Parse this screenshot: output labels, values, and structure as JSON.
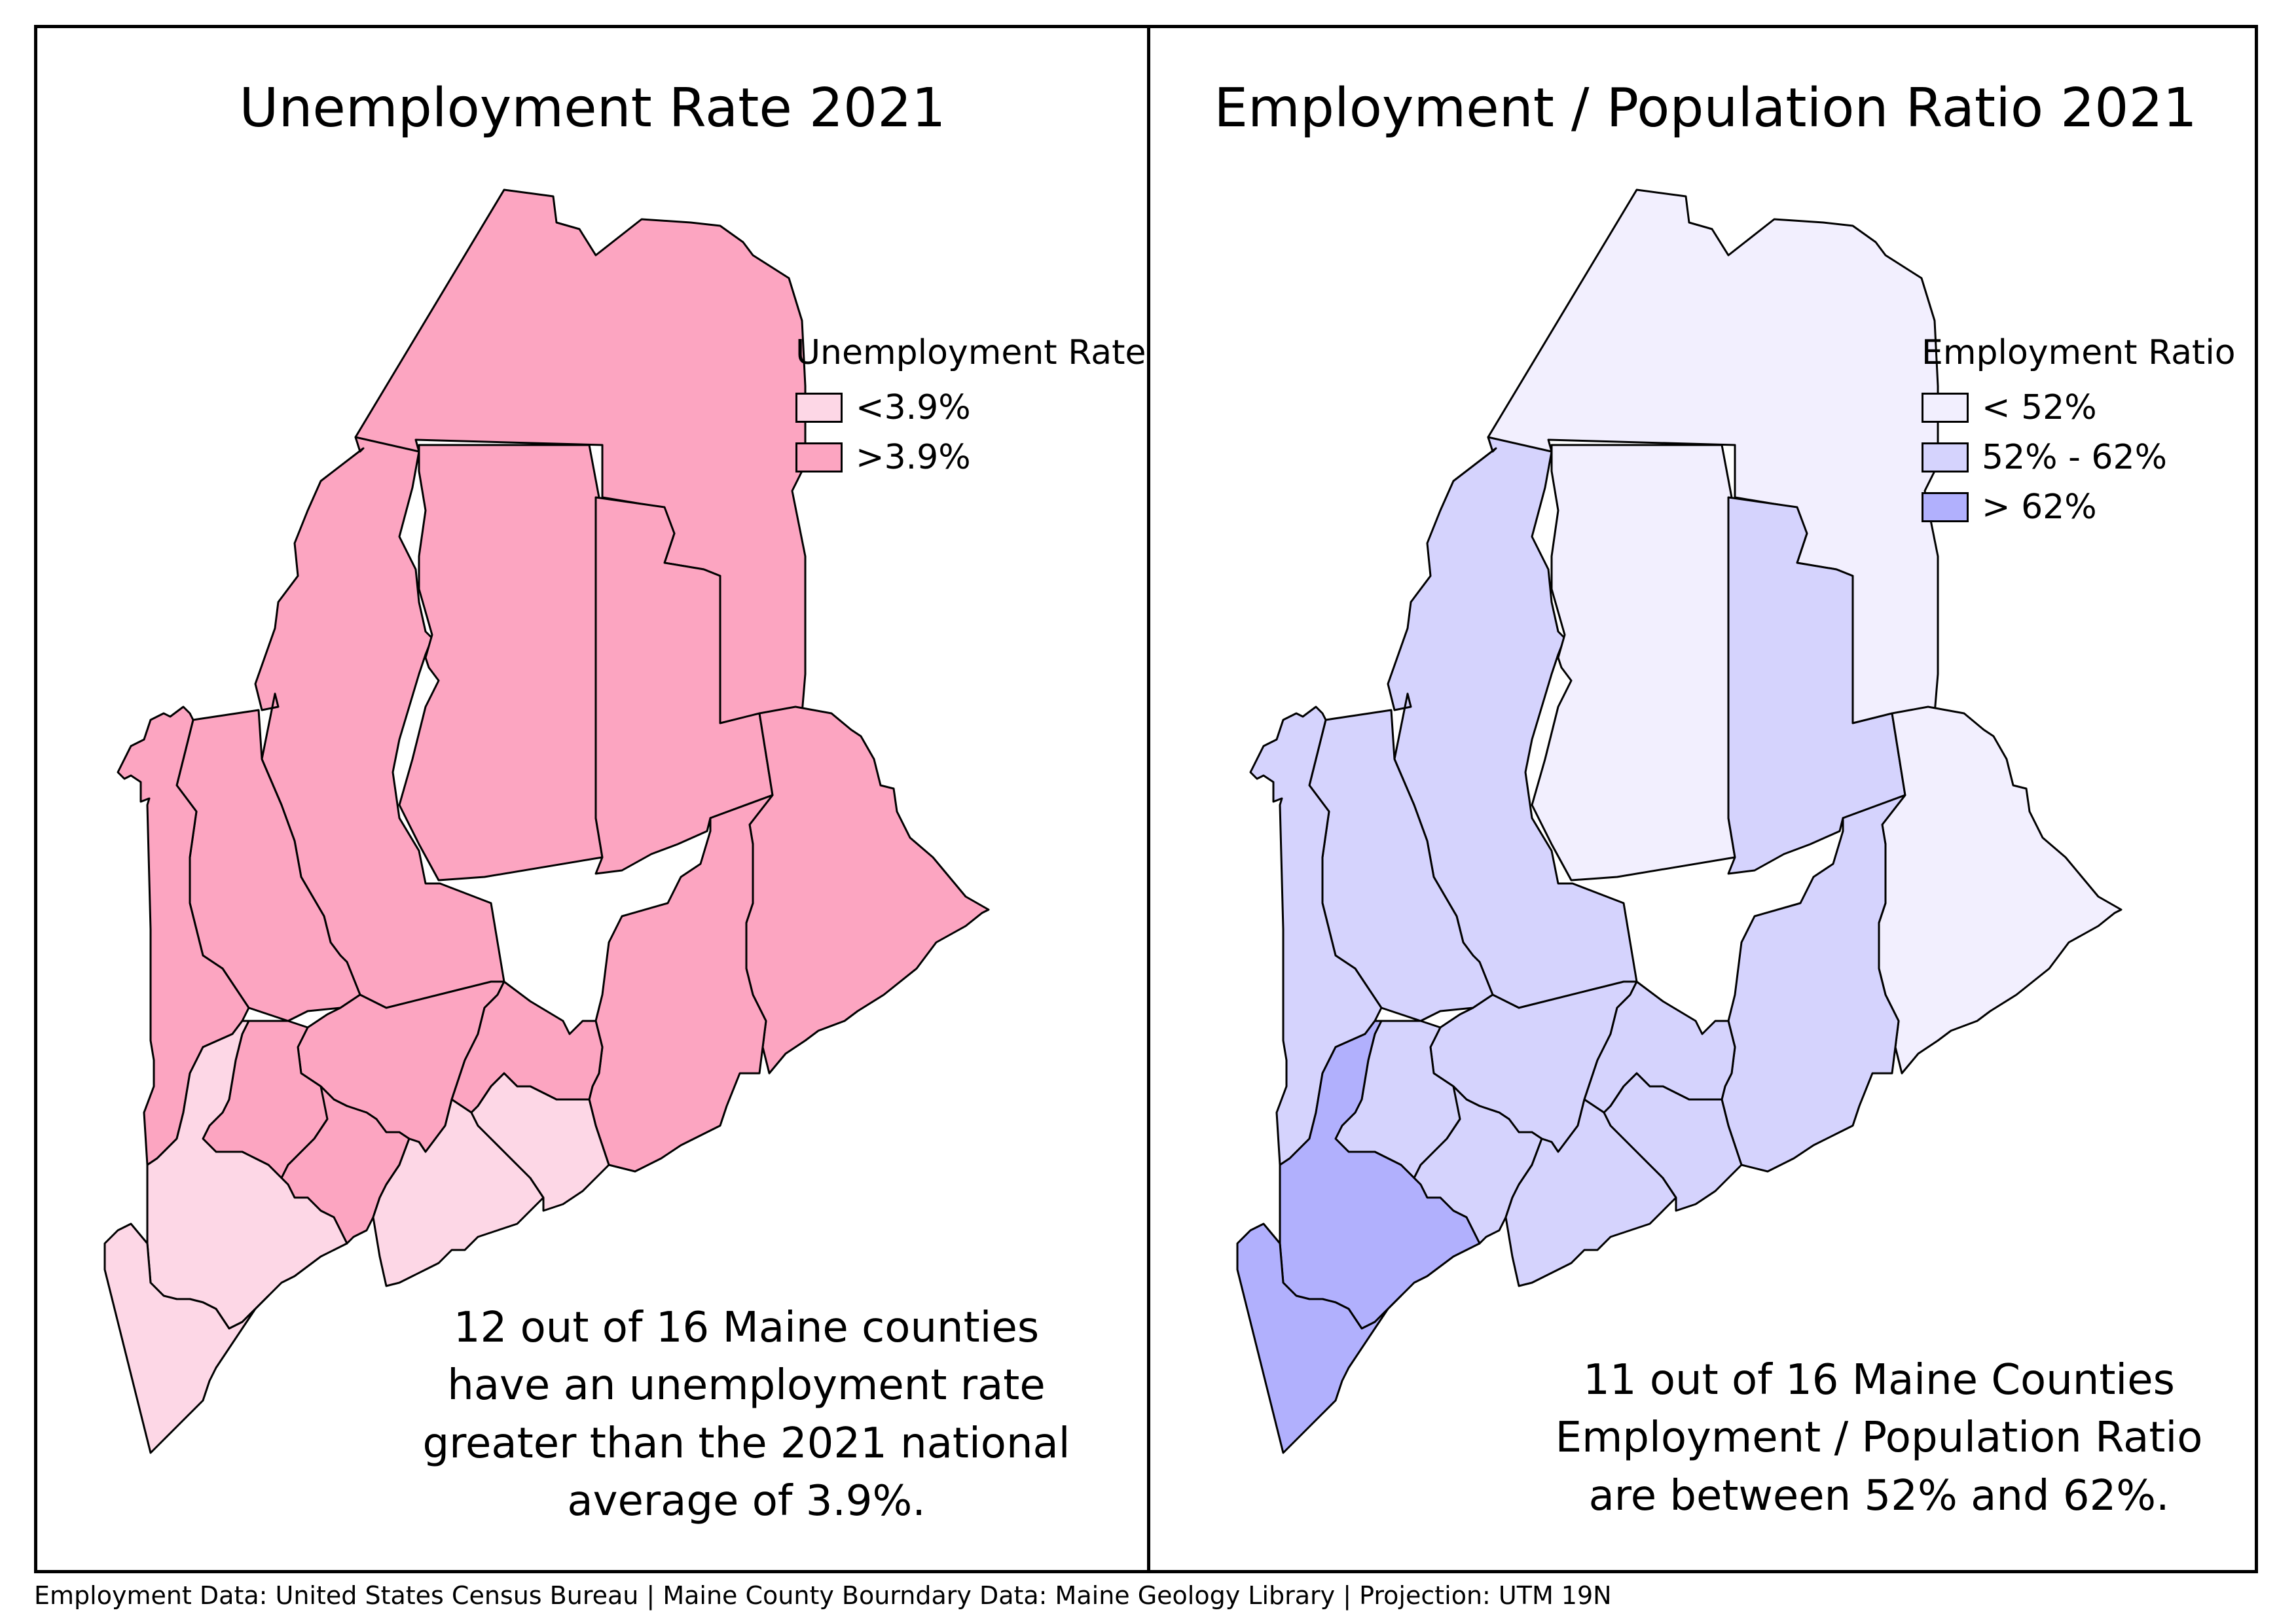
{
  "left_panel": {
    "title": "Unemployment Rate 2021",
    "legend": {
      "title": "Unemployment Rate",
      "items": [
        {
          "label": "<3.9%",
          "color": "#fdd7e6"
        },
        {
          "label": ">3.9%",
          "color": "#fca5c1"
        }
      ]
    },
    "caption_lines": [
      "12 out of 16 Maine counties",
      "have an unemployment rate",
      "greater than the 2021 national",
      "average of 3.9%."
    ],
    "county_classes": {
      "aroostook": 1,
      "somerset": 1,
      "piscataquis": 1,
      "penobscot": 1,
      "washington": 1,
      "franklin": 1,
      "oxford": 1,
      "hancock": 1,
      "kennebec": 1,
      "waldo": 1,
      "androscoggin": 1,
      "sagadahoc": 1,
      "york": 0,
      "cumberland": 0,
      "lincoln": 0,
      "knox": 0
    }
  },
  "right_panel": {
    "title": "Employment / Population Ratio 2021",
    "legend": {
      "title": "Employment Ratio",
      "items": [
        {
          "label": "< 52%",
          "color": "#f2effe"
        },
        {
          "label": "52% - 62%",
          "color": "#d5d3fd"
        },
        {
          "label": "> 62%",
          "color": "#b1b0fd"
        }
      ]
    },
    "caption_lines": [
      "11 out of 16 Maine Counties",
      "Employment / Population Ratio",
      "are between 52% and 62%."
    ],
    "county_classes": {
      "aroostook": 0,
      "piscataquis": 0,
      "washington": 0,
      "somerset": 1,
      "penobscot": 1,
      "franklin": 1,
      "oxford": 1,
      "hancock": 1,
      "kennebec": 1,
      "waldo": 1,
      "androscoggin": 1,
      "sagadahoc": 1,
      "lincoln": 1,
      "knox": 1,
      "york": 2,
      "cumberland": 2
    }
  },
  "footer": "Employment Data: United States Census Bureau  |  Maine County Bourndary Data: Maine Geology Library  |  Projection: UTM 19N"
}
